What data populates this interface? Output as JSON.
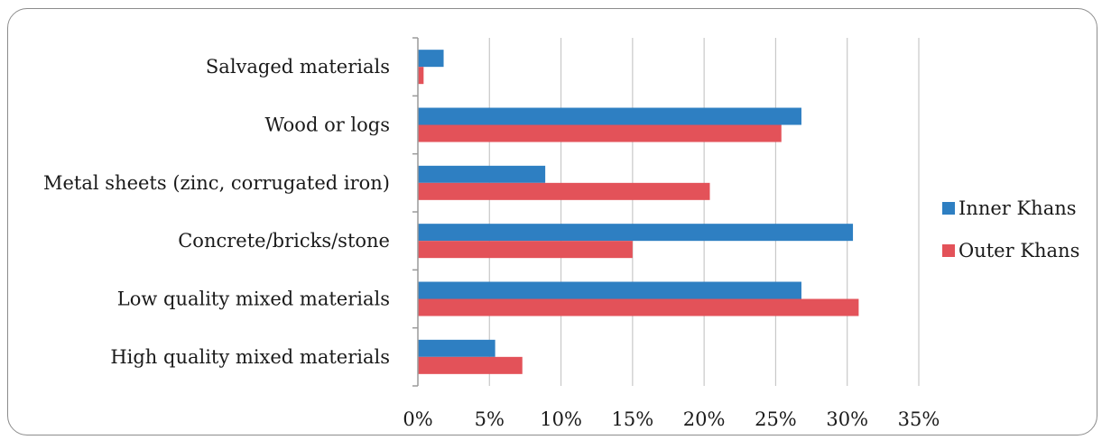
{
  "chart_data": {
    "type": "bar",
    "orientation": "horizontal",
    "title": "",
    "xlabel": "",
    "ylabel": "",
    "categories": [
      "High quality mixed materials",
      "Low quality mixed materials",
      "Concrete/bricks/stone",
      "Metal sheets (zinc, corrugated iron)",
      "Wood or logs",
      "Salvaged materials"
    ],
    "series": [
      {
        "name": "Inner Khans",
        "color": "#2e7fc2",
        "values": [
          5.4,
          26.8,
          30.4,
          8.9,
          26.8,
          1.8
        ]
      },
      {
        "name": "Outer Khans",
        "color": "#e35259",
        "values": [
          7.3,
          30.8,
          15.0,
          20.4,
          25.4,
          0.4
        ]
      }
    ],
    "xlim": [
      0,
      35
    ],
    "xticks": [
      0,
      5,
      10,
      15,
      20,
      25,
      30,
      35
    ],
    "xtick_labels": [
      "0%",
      "5%",
      "10%",
      "15%",
      "20%",
      "25%",
      "30%",
      "35%"
    ],
    "grid": "vertical",
    "legend": "right"
  }
}
